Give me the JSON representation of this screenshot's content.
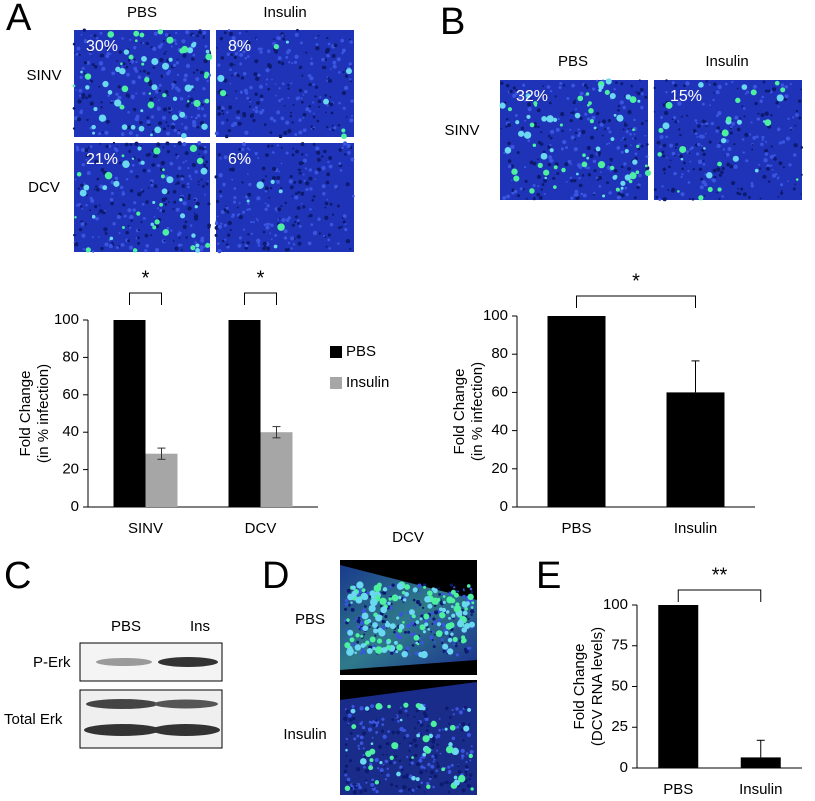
{
  "panel_labels": [
    "A",
    "B",
    "C",
    "D",
    "E"
  ],
  "images": {
    "A": {
      "columns": [
        "PBS",
        "Insulin"
      ],
      "rows": [
        "SINV",
        "DCV"
      ],
      "percents": [
        [
          "30%",
          "8%"
        ],
        [
          "21%",
          "6%"
        ]
      ]
    },
    "B": {
      "columns": [
        "PBS",
        "Insulin"
      ],
      "rows": [
        "SINV"
      ],
      "percents": [
        [
          "32%",
          "15%"
        ]
      ]
    },
    "D": {
      "title": "DCV",
      "rows": [
        "PBS",
        "Insulin"
      ]
    }
  },
  "blot": {
    "columns": [
      "PBS",
      "Ins"
    ],
    "rows": [
      "P-Erk",
      "Total Erk"
    ]
  },
  "chart_data": [
    {
      "type": "bar",
      "categories": [
        "SINV",
        "DCV"
      ],
      "series": [
        {
          "name": "PBS",
          "color": "#000000",
          "values": [
            100,
            100
          ],
          "errors": [
            null,
            null
          ]
        },
        {
          "name": "Insulin",
          "color": "#a6a6a6",
          "values": [
            28.5,
            40
          ],
          "errors": [
            3,
            3
          ]
        }
      ],
      "ylabel": [
        "Fold Change",
        "(in % infection)"
      ],
      "ylim": [
        0,
        100
      ],
      "yticks": [
        0,
        20,
        40,
        60,
        80,
        100
      ],
      "annotations": [
        "*",
        "*"
      ],
      "legend": "right"
    },
    {
      "type": "bar",
      "categories": [
        "PBS",
        "Insulin"
      ],
      "values": [
        100,
        60
      ],
      "errors": [
        null,
        16.5
      ],
      "color": "#000000",
      "ylabel": [
        "Fold Change",
        "(in % infection)"
      ],
      "ylim": [
        0,
        100
      ],
      "yticks": [
        0,
        20,
        40,
        60,
        80,
        100
      ],
      "annotations": [
        "*"
      ]
    },
    {
      "type": "bar",
      "categories": [
        "PBS",
        "Insulin"
      ],
      "values": [
        100,
        6.5
      ],
      "errors": [
        null,
        10.5
      ],
      "color": "#000000",
      "ylabel": [
        "Fold Change",
        "(DCV RNA levels)"
      ],
      "ylim": [
        0,
        100
      ],
      "yticks": [
        0,
        25,
        50,
        75,
        100
      ],
      "annotations": [
        "**"
      ]
    }
  ]
}
